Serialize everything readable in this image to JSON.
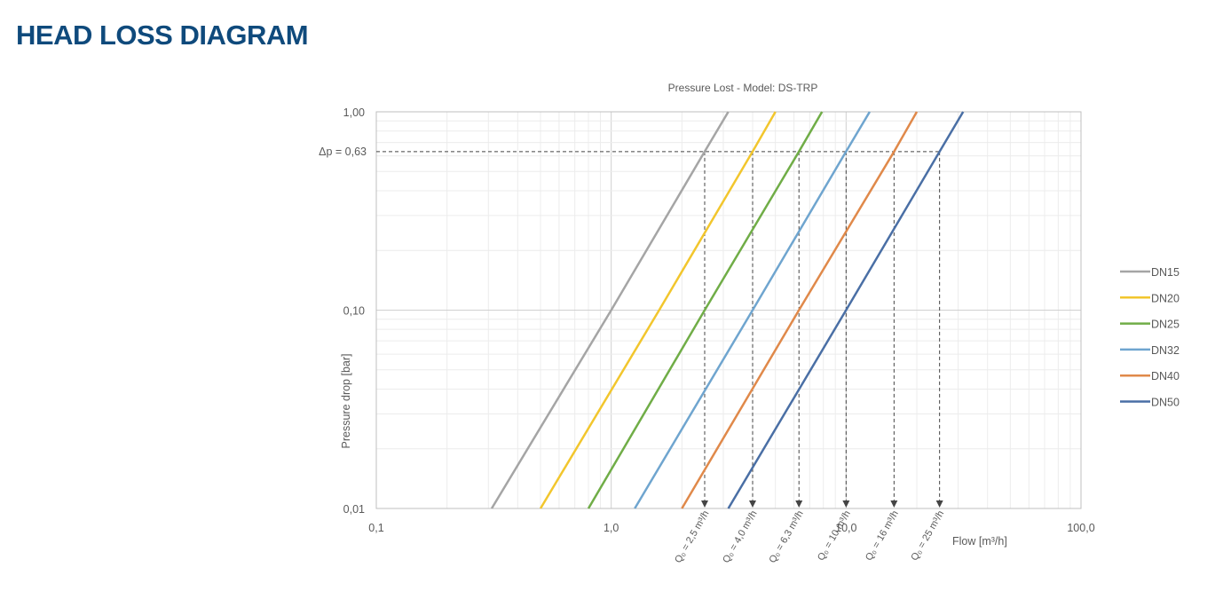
{
  "page": {
    "heading": "HEAD LOSS DIAGRAM"
  },
  "chart_data": {
    "type": "line",
    "title": "Pressure Lost - Model: DS-TRP",
    "xlabel": "Flow [m³/h]",
    "ylabel": "Pressure drop  [bar]",
    "x_scale": "log",
    "y_scale": "log",
    "xlim": [
      0.1,
      100.0
    ],
    "ylim": [
      0.01,
      1.0
    ],
    "x_ticks": [
      {
        "value": 0.1,
        "label": "0,1"
      },
      {
        "value": 1.0,
        "label": "1,0"
      },
      {
        "value": 10.0,
        "label": "10,0"
      },
      {
        "value": 100.0,
        "label": "100,0"
      }
    ],
    "y_ticks": [
      {
        "value": 0.01,
        "label": "0,01"
      },
      {
        "value": 0.1,
        "label": "0,10"
      },
      {
        "value": 1.0,
        "label": "1,00"
      }
    ],
    "grid": true,
    "legend_position": "right",
    "reference_line": {
      "y": 0.63,
      "label": "Δp = 0,63"
    },
    "series": [
      {
        "name": "DN15",
        "color": "#a5a5a5",
        "x": [
          0.31,
          1.0,
          2.5,
          3.15
        ],
        "y": [
          0.01,
          0.1,
          0.63,
          1.0
        ]
      },
      {
        "name": "DN20",
        "color": "#f2c62d",
        "x": [
          0.5,
          1.6,
          4.0,
          5.0
        ],
        "y": [
          0.01,
          0.1,
          0.63,
          1.0
        ]
      },
      {
        "name": "DN25",
        "color": "#70ad47",
        "x": [
          0.8,
          2.5,
          6.3,
          7.9
        ],
        "y": [
          0.01,
          0.1,
          0.63,
          1.0
        ]
      },
      {
        "name": "DN32",
        "color": "#6fa5cf",
        "x": [
          1.26,
          4.0,
          10.0,
          12.6
        ],
        "y": [
          0.01,
          0.1,
          0.63,
          1.0
        ]
      },
      {
        "name": "DN40",
        "color": "#e0894a",
        "x": [
          2.0,
          6.3,
          16.0,
          20.0
        ],
        "y": [
          0.01,
          0.1,
          0.63,
          1.0
        ]
      },
      {
        "name": "DN50",
        "color": "#4a6fa5",
        "x": [
          3.15,
          10.0,
          25.0,
          31.5
        ],
        "y": [
          0.01,
          0.1,
          0.63,
          1.0
        ]
      }
    ],
    "annotations": [
      {
        "x": 2.5,
        "label": "Q₀ = 2,5 m³/h"
      },
      {
        "x": 4.0,
        "label": "Q₀ = 4,0 m³/h"
      },
      {
        "x": 6.3,
        "label": "Q₀ = 6,3 m³/h"
      },
      {
        "x": 10.0,
        "label": "Q₀ = 10 m³/h"
      },
      {
        "x": 16.0,
        "label": "Q₀ = 16 m³/h"
      },
      {
        "x": 25.0,
        "label": "Q₀ = 25 m³/h"
      }
    ]
  }
}
